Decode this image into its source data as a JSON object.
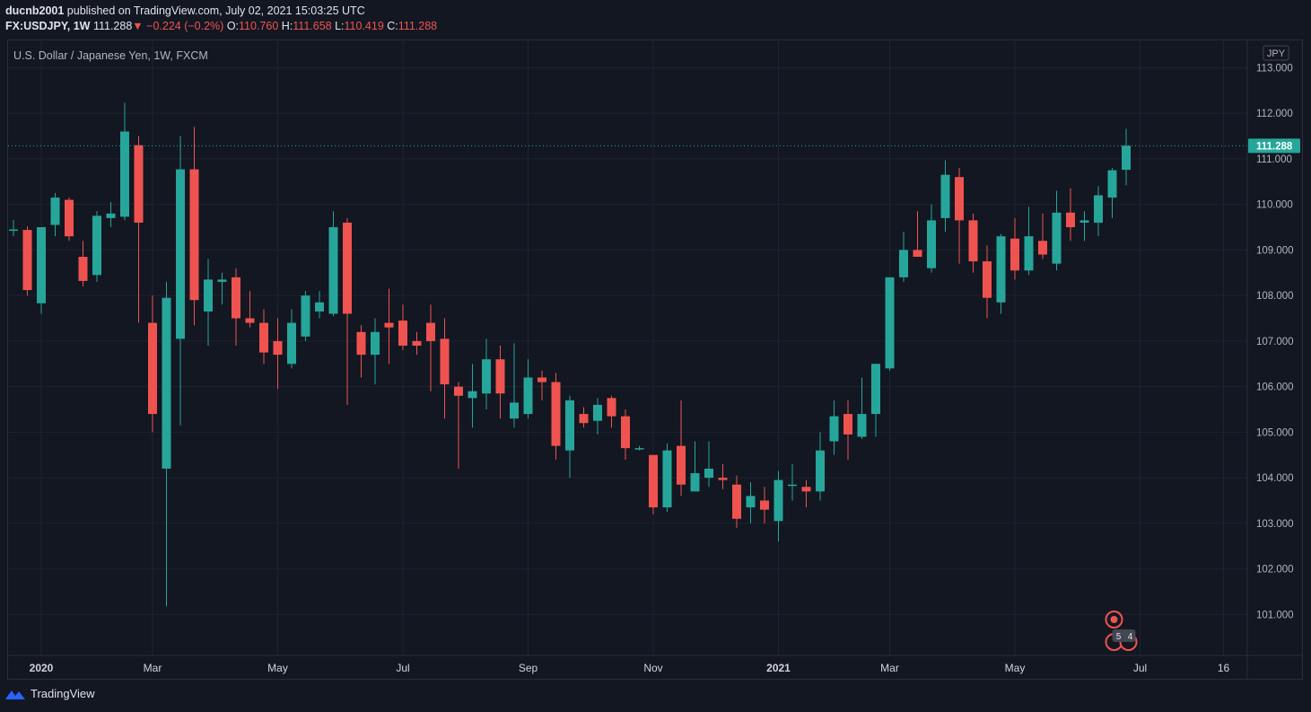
{
  "header": {
    "user": "ducnb2001",
    "published_text": "published on TradingView.com, July 02, 2021 15:03:25 UTC",
    "symbol": "FX:USDJPY, 1W",
    "last": "111.288",
    "arrow": "▼",
    "change": "−0.224 (−0.2%)",
    "o_label": "O:",
    "o_val": "110.760",
    "h_label": "H:",
    "h_val": "111.658",
    "l_label": "L:",
    "l_val": "110.419",
    "c_label": "C:",
    "c_val": "111.288"
  },
  "chart_title": "U.S. Dollar / Japanese Yen, 1W, FXCM",
  "currency_badge": "JPY",
  "price_tag": "111.288",
  "event_counts": [
    "5",
    "4"
  ],
  "footer": {
    "brand": "TradingView"
  },
  "colors": {
    "up": "#26a69a",
    "down": "#ef5350",
    "bg": "#131722",
    "grid": "#1f2330"
  },
  "chart_data": {
    "type": "candlestick",
    "title": "U.S. Dollar / Japanese Yen, 1W, FXCM",
    "symbol": "FX:USDJPY",
    "interval": "1W",
    "currency": "JPY",
    "ylim": [
      100.1,
      113.6
    ],
    "y_ticks": [
      "113.000",
      "112.000",
      "111.000",
      "110.000",
      "109.000",
      "108.000",
      "107.000",
      "106.000",
      "105.000",
      "104.000",
      "103.000",
      "102.000",
      "101.000"
    ],
    "x_ticks": [
      {
        "label": "2020",
        "index": 2
      },
      {
        "label": "Mar",
        "index": 10
      },
      {
        "label": "May",
        "index": 19
      },
      {
        "label": "Jul",
        "index": 28
      },
      {
        "label": "Sep",
        "index": 37
      },
      {
        "label": "Nov",
        "index": 46
      },
      {
        "label": "2021",
        "index": 55
      },
      {
        "label": "Mar",
        "index": 63
      },
      {
        "label": "May",
        "index": 72
      },
      {
        "label": "Jul",
        "index": 81
      },
      {
        "label": "16",
        "index": 87
      }
    ],
    "last_price": 111.288,
    "candles": [
      [
        109.43,
        109.66,
        109.3,
        109.45
      ],
      [
        109.44,
        109.52,
        108.0,
        108.12
      ],
      [
        107.83,
        109.5,
        107.6,
        109.5
      ],
      [
        109.55,
        110.25,
        109.3,
        110.15
      ],
      [
        110.1,
        110.15,
        109.2,
        109.3
      ],
      [
        108.85,
        109.2,
        108.2,
        108.32
      ],
      [
        108.45,
        109.85,
        108.3,
        109.75
      ],
      [
        109.7,
        110.05,
        109.5,
        109.8
      ],
      [
        109.73,
        112.23,
        109.65,
        111.6
      ],
      [
        111.3,
        111.5,
        107.4,
        109.6
      ],
      [
        107.4,
        108.0,
        105.0,
        105.4
      ],
      [
        104.2,
        108.3,
        101.18,
        107.95
      ],
      [
        107.05,
        111.5,
        105.15,
        110.77
      ],
      [
        110.77,
        111.7,
        107.35,
        107.9
      ],
      [
        107.65,
        108.8,
        106.9,
        108.35
      ],
      [
        108.3,
        108.5,
        107.8,
        108.35
      ],
      [
        108.4,
        108.6,
        106.9,
        107.5
      ],
      [
        107.5,
        108.1,
        107.3,
        107.4
      ],
      [
        107.4,
        107.7,
        106.5,
        106.75
      ],
      [
        107.0,
        107.5,
        105.95,
        106.7
      ],
      [
        106.5,
        107.7,
        106.4,
        107.4
      ],
      [
        107.1,
        108.1,
        107.0,
        108.0
      ],
      [
        107.65,
        108.1,
        107.5,
        107.85
      ],
      [
        107.6,
        109.85,
        107.55,
        109.5
      ],
      [
        109.6,
        109.7,
        105.6,
        107.6
      ],
      [
        107.2,
        107.35,
        106.2,
        106.7
      ],
      [
        106.7,
        107.5,
        106.05,
        107.2
      ],
      [
        107.4,
        108.15,
        106.5,
        107.3
      ],
      [
        107.45,
        107.8,
        106.8,
        106.9
      ],
      [
        107.0,
        107.2,
        106.7,
        106.9
      ],
      [
        107.4,
        107.8,
        105.9,
        107.0
      ],
      [
        107.05,
        107.5,
        105.3,
        106.05
      ],
      [
        106.0,
        106.1,
        104.2,
        105.8
      ],
      [
        105.75,
        106.5,
        105.1,
        105.9
      ],
      [
        105.85,
        107.05,
        105.5,
        106.6
      ],
      [
        106.6,
        106.9,
        105.3,
        105.85
      ],
      [
        105.3,
        106.95,
        105.1,
        105.65
      ],
      [
        105.4,
        106.6,
        105.3,
        106.2
      ],
      [
        106.2,
        106.35,
        105.7,
        106.1
      ],
      [
        106.1,
        106.3,
        104.4,
        104.7
      ],
      [
        104.6,
        105.8,
        104.0,
        105.7
      ],
      [
        105.4,
        105.55,
        105.1,
        105.2
      ],
      [
        105.25,
        105.75,
        104.95,
        105.6
      ],
      [
        105.75,
        105.8,
        105.1,
        105.35
      ],
      [
        105.35,
        105.5,
        104.4,
        104.65
      ],
      [
        104.65,
        104.7,
        104.6,
        104.65
      ],
      [
        104.5,
        104.5,
        103.2,
        103.35
      ],
      [
        103.35,
        104.75,
        103.25,
        104.6
      ],
      [
        104.7,
        105.7,
        103.6,
        103.85
      ],
      [
        103.7,
        104.8,
        103.7,
        104.1
      ],
      [
        104.0,
        104.8,
        103.8,
        104.2
      ],
      [
        104.0,
        104.3,
        103.75,
        103.95
      ],
      [
        103.85,
        104.05,
        102.9,
        103.1
      ],
      [
        103.35,
        103.9,
        103.0,
        103.6
      ],
      [
        103.5,
        103.8,
        103.0,
        103.3
      ],
      [
        103.05,
        104.15,
        102.6,
        103.95
      ],
      [
        103.85,
        104.3,
        103.5,
        103.85
      ],
      [
        103.8,
        103.95,
        103.35,
        103.7
      ],
      [
        103.7,
        105.0,
        103.5,
        104.6
      ],
      [
        104.8,
        105.7,
        104.5,
        105.35
      ],
      [
        105.4,
        105.7,
        104.4,
        104.95
      ],
      [
        104.9,
        106.2,
        104.85,
        105.4
      ],
      [
        105.4,
        106.5,
        104.9,
        106.5
      ],
      [
        106.4,
        108.4,
        106.35,
        108.4
      ],
      [
        108.4,
        109.4,
        108.3,
        109.0
      ],
      [
        109.0,
        109.85,
        108.95,
        108.85
      ],
      [
        108.6,
        110.0,
        108.5,
        109.65
      ],
      [
        109.7,
        110.97,
        109.4,
        110.65
      ],
      [
        110.6,
        110.8,
        108.7,
        109.65
      ],
      [
        109.65,
        109.8,
        108.5,
        108.75
      ],
      [
        108.75,
        109.1,
        107.5,
        107.95
      ],
      [
        107.85,
        109.35,
        107.6,
        109.3
      ],
      [
        109.25,
        109.7,
        108.35,
        108.55
      ],
      [
        108.55,
        109.95,
        108.45,
        109.3
      ],
      [
        109.2,
        109.8,
        108.8,
        108.9
      ],
      [
        108.7,
        110.3,
        108.55,
        109.82
      ],
      [
        109.82,
        110.35,
        109.2,
        109.5
      ],
      [
        109.6,
        109.85,
        109.2,
        109.65
      ],
      [
        109.6,
        110.4,
        109.3,
        110.2
      ],
      [
        110.15,
        110.8,
        109.7,
        110.75
      ],
      [
        110.76,
        111.658,
        110.419,
        111.288
      ]
    ]
  }
}
